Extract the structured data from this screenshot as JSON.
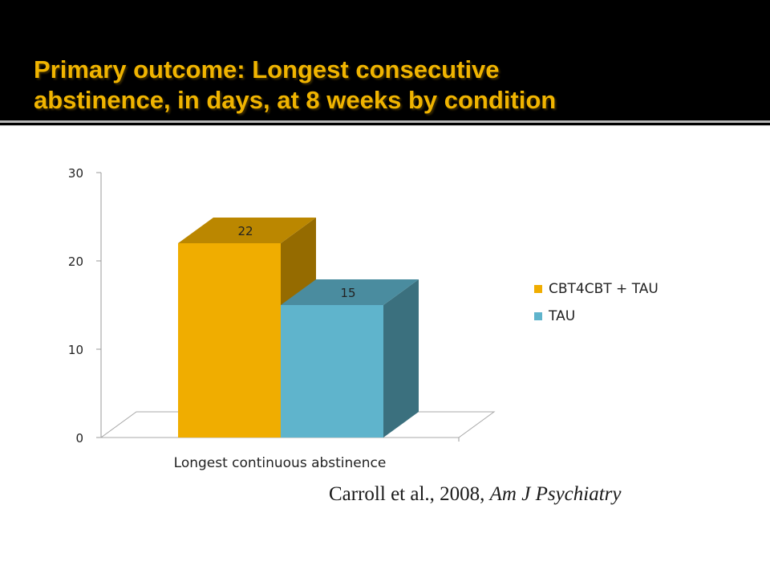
{
  "slide": {
    "title_line1": "Primary outcome:  Longest consecutive",
    "title_line2": "abstinence, in days, at 8 weeks by condition",
    "citation_main": "Carroll et al., 2008, ",
    "citation_journal": "Am J Psychiatry"
  },
  "colors": {
    "title": "#f0b400",
    "series1": "#f0ad00",
    "series2": "#5fb4cc"
  },
  "chart_data": {
    "type": "bar",
    "three_d": true,
    "categories": [
      "Longest continuous abstinence"
    ],
    "series": [
      {
        "name": "CBT4CBT + TAU",
        "values": [
          22
        ],
        "label": "22",
        "color": "#f0ad00"
      },
      {
        "name": "TAU",
        "values": [
          15
        ],
        "label": "15",
        "color": "#5fb4cc"
      }
    ],
    "yticks": [
      "0",
      "10",
      "20",
      "30"
    ],
    "ylim": [
      0,
      30
    ],
    "legend_position": "right",
    "grid": false
  }
}
